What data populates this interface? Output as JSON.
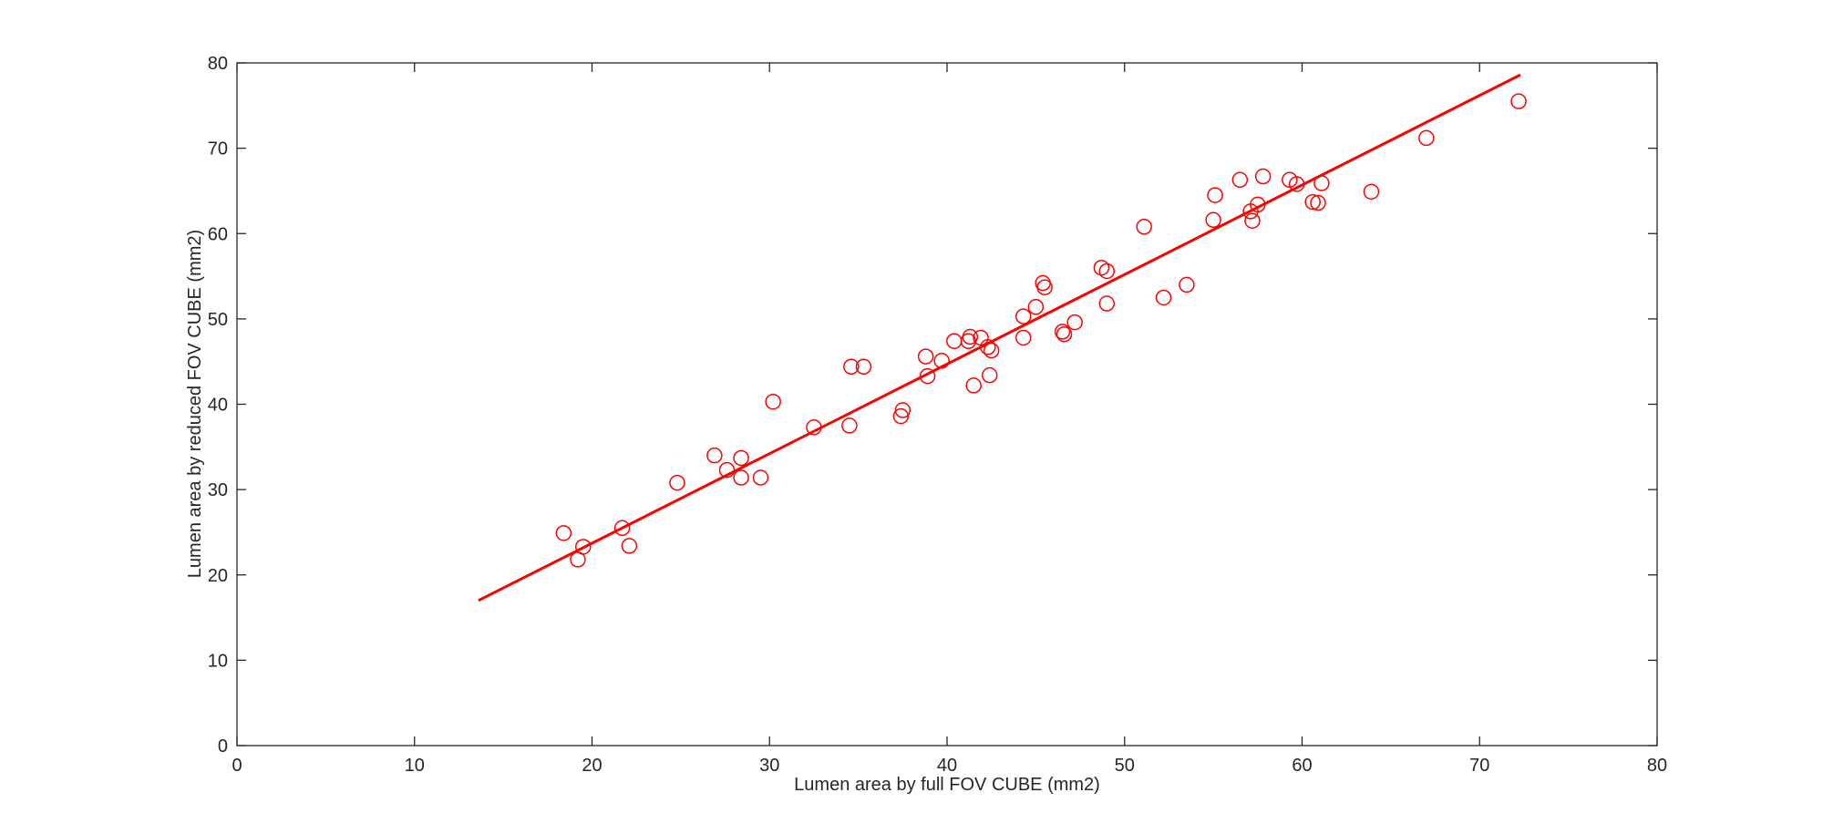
{
  "chart_data": {
    "type": "scatter",
    "xlabel": "Lumen area by full FOV CUBE (mm2)",
    "ylabel": "Lumen area by reduced FOV CUBE (mm2)",
    "xlim": [
      0,
      80
    ],
    "ylim": [
      0,
      80
    ],
    "xticks": [
      0,
      10,
      20,
      30,
      40,
      50,
      60,
      70,
      80
    ],
    "yticks": [
      0,
      10,
      20,
      30,
      40,
      50,
      60,
      70,
      80
    ],
    "color": "#ff0000",
    "x": [
      18.4,
      19.2,
      19.5,
      21.7,
      22.1,
      24.8,
      26.9,
      27.6,
      28.4,
      28.4,
      29.5,
      30.2,
      32.5,
      34.5,
      34.6,
      35.3,
      37.4,
      37.5,
      38.8,
      38.9,
      39.7,
      40.4,
      41.2,
      41.3,
      41.5,
      41.9,
      42.3,
      42.4,
      42.5,
      44.3,
      44.3,
      45.0,
      45.4,
      45.5,
      46.5,
      46.6,
      47.2,
      48.7,
      49.0,
      49.0,
      51.1,
      52.2,
      53.5,
      55.1,
      55.0,
      56.5,
      57.1,
      57.2,
      57.5,
      57.8,
      59.3,
      59.7,
      60.6,
      60.9,
      61.1,
      63.9,
      67.0,
      72.2
    ],
    "values": [
      24.9,
      21.8,
      23.3,
      25.5,
      23.4,
      30.8,
      34.0,
      32.3,
      33.7,
      31.4,
      31.4,
      40.3,
      37.3,
      37.5,
      44.4,
      44.4,
      38.6,
      39.3,
      45.6,
      43.3,
      45.1,
      47.4,
      47.4,
      47.9,
      42.2,
      47.8,
      46.7,
      43.4,
      46.3,
      50.3,
      47.8,
      51.4,
      54.2,
      53.7,
      48.5,
      48.2,
      49.6,
      56.0,
      55.6,
      51.8,
      60.8,
      52.5,
      54.0,
      64.5,
      61.6,
      66.3,
      62.6,
      61.5,
      63.4,
      66.7,
      66.3,
      65.8,
      63.7,
      63.6,
      65.9,
      64.9,
      71.2,
      75.5
    ],
    "fit_line": {
      "x": [
        13.6,
        72.3
      ],
      "values": [
        17.0,
        78.6
      ]
    }
  }
}
